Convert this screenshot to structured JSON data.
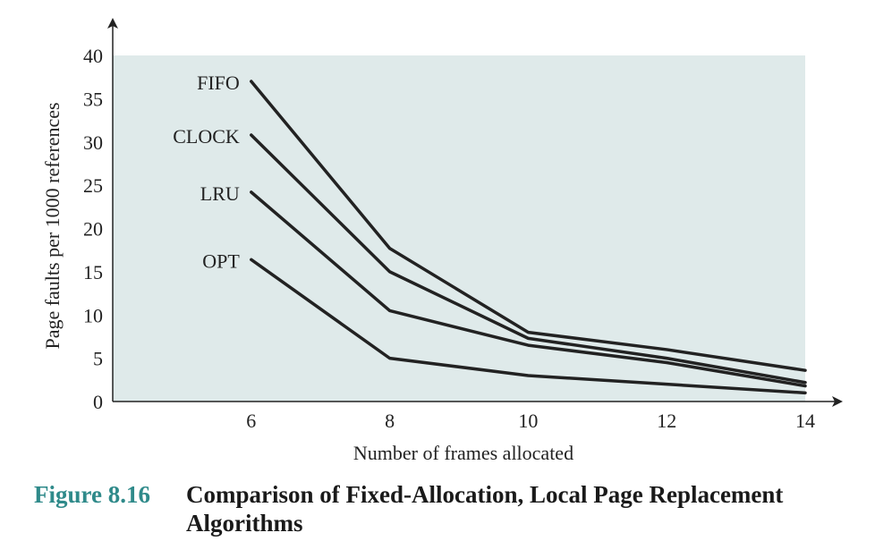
{
  "chart_data": {
    "type": "line",
    "xlabel": "Number of frames allocated",
    "ylabel": "Page faults per 1000 references",
    "x_ticks": [
      6,
      8,
      10,
      12,
      14
    ],
    "y_ticks": [
      0,
      5,
      10,
      15,
      20,
      25,
      30,
      35,
      40
    ],
    "xlim": [
      4,
      14
    ],
    "ylim": [
      0,
      40
    ],
    "grid": false,
    "background_color": "#dfeaea",
    "line_color": "#222222",
    "series": [
      {
        "name": "FIFO",
        "x": [
          6,
          8,
          10,
          12,
          14
        ],
        "y": [
          37,
          17.7,
          8,
          6,
          3.6
        ]
      },
      {
        "name": "CLOCK",
        "x": [
          6,
          8,
          10,
          12,
          14
        ],
        "y": [
          30.8,
          15,
          7.3,
          5,
          2.2
        ]
      },
      {
        "name": "LRU",
        "x": [
          6,
          8,
          10,
          12,
          14
        ],
        "y": [
          24.2,
          10.5,
          6.5,
          4.5,
          1.8
        ]
      },
      {
        "name": "OPT",
        "x": [
          6,
          8,
          10,
          12,
          14
        ],
        "y": [
          16.4,
          5,
          3,
          2,
          1
        ]
      }
    ]
  },
  "caption": {
    "figure_number": "Figure 8.16",
    "title": "Comparison of Fixed-Allocation, Local Page Replacement Algorithms"
  }
}
